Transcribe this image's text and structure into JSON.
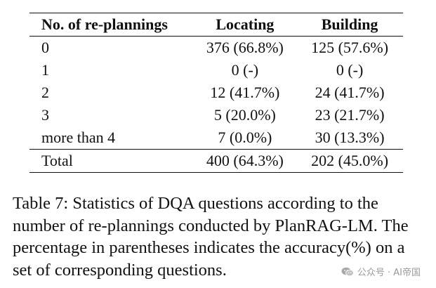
{
  "table": {
    "headers": [
      "No. of re-plannings",
      "Locating",
      "Building"
    ],
    "rows": [
      [
        "0",
        "376 (66.8%)",
        "125 (57.6%)"
      ],
      [
        "1",
        "0 (-)",
        "0 (-)"
      ],
      [
        "2",
        "12 (41.7%)",
        "24 (41.7%)"
      ],
      [
        "3",
        "5 (20.0%)",
        "23 (21.7%)"
      ],
      [
        "more than 4",
        "7 (0.0%)",
        "30 (13.3%)"
      ]
    ],
    "total": [
      "Total",
      "400 (64.3%)",
      "202 (45.0%)"
    ]
  },
  "caption": {
    "label": "Table 7:",
    "text": "Statistics of DQA questions according to the number of re-plannings conducted by PlanRAG-LM. The percentage in parentheses indicates the accuracy(%) on a set of corresponding questions."
  },
  "watermark": {
    "text": "公众号 · AI帝国",
    "icon": "wechat-icon"
  }
}
